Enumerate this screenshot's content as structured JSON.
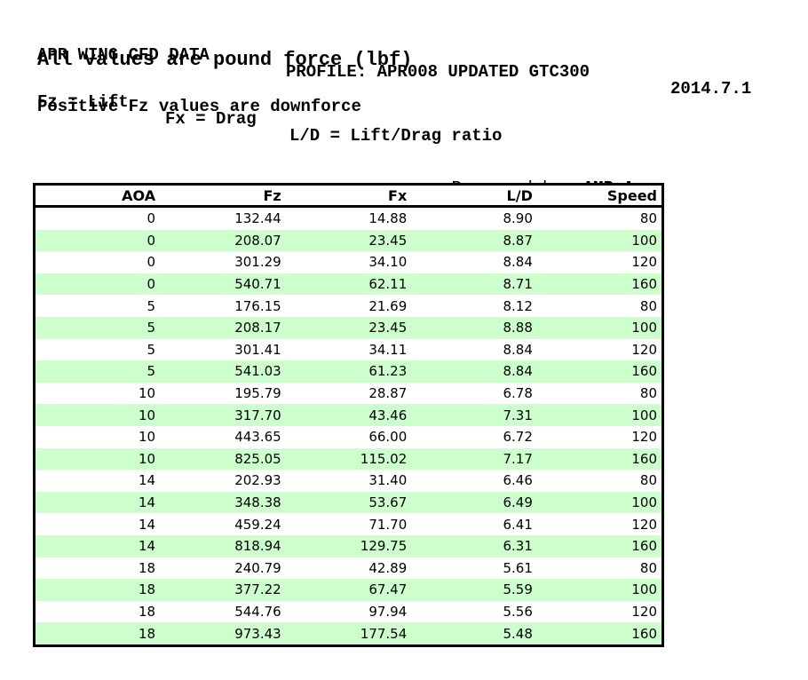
{
  "header": {
    "title": "APR WING CFD DATA",
    "profile": "PROFILE: APR008 UPDATED GTC300",
    "date": "2014.7.1",
    "subtitle": "All values are pound force (lbf)",
    "legend": [
      "Fz = Lift",
      "Fx = Drag",
      "L/D = Lift/Drag ratio"
    ],
    "note": "Positive Fz values are downforce"
  },
  "prepared_by": {
    "label": "Prepared by:",
    "value": " AMB Aero"
  },
  "table": {
    "columns": [
      "AOA",
      "Fz",
      "Fx",
      "L/D",
      "Speed"
    ],
    "rows": [
      [
        "0",
        "132.44",
        "14.88",
        "8.90",
        "80"
      ],
      [
        "0",
        "208.07",
        "23.45",
        "8.87",
        "100"
      ],
      [
        "0",
        "301.29",
        "34.10",
        "8.84",
        "120"
      ],
      [
        "0",
        "540.71",
        "62.11",
        "8.71",
        "160"
      ],
      [
        "5",
        "176.15",
        "21.69",
        "8.12",
        "80"
      ],
      [
        "5",
        "208.17",
        "23.45",
        "8.88",
        "100"
      ],
      [
        "5",
        "301.41",
        "34.11",
        "8.84",
        "120"
      ],
      [
        "5",
        "541.03",
        "61.23",
        "8.84",
        "160"
      ],
      [
        "10",
        "195.79",
        "28.87",
        "6.78",
        "80"
      ],
      [
        "10",
        "317.70",
        "43.46",
        "7.31",
        "100"
      ],
      [
        "10",
        "443.65",
        "66.00",
        "6.72",
        "120"
      ],
      [
        "10",
        "825.05",
        "115.02",
        "7.17",
        "160"
      ],
      [
        "14",
        "202.93",
        "31.40",
        "6.46",
        "80"
      ],
      [
        "14",
        "348.38",
        "53.67",
        "6.49",
        "100"
      ],
      [
        "14",
        "459.24",
        "71.70",
        "6.41",
        "120"
      ],
      [
        "14",
        "818.94",
        "129.75",
        "6.31",
        "160"
      ],
      [
        "18",
        "240.79",
        "42.89",
        "5.61",
        "80"
      ],
      [
        "18",
        "377.22",
        "67.47",
        "5.59",
        "100"
      ],
      [
        "18",
        "544.76",
        "97.94",
        "5.56",
        "120"
      ],
      [
        "18",
        "973.43",
        "177.54",
        "5.48",
        "160"
      ]
    ],
    "colors": {
      "alt_row_background": "#ccffcc",
      "border": "#000000",
      "text": "#000000"
    }
  }
}
